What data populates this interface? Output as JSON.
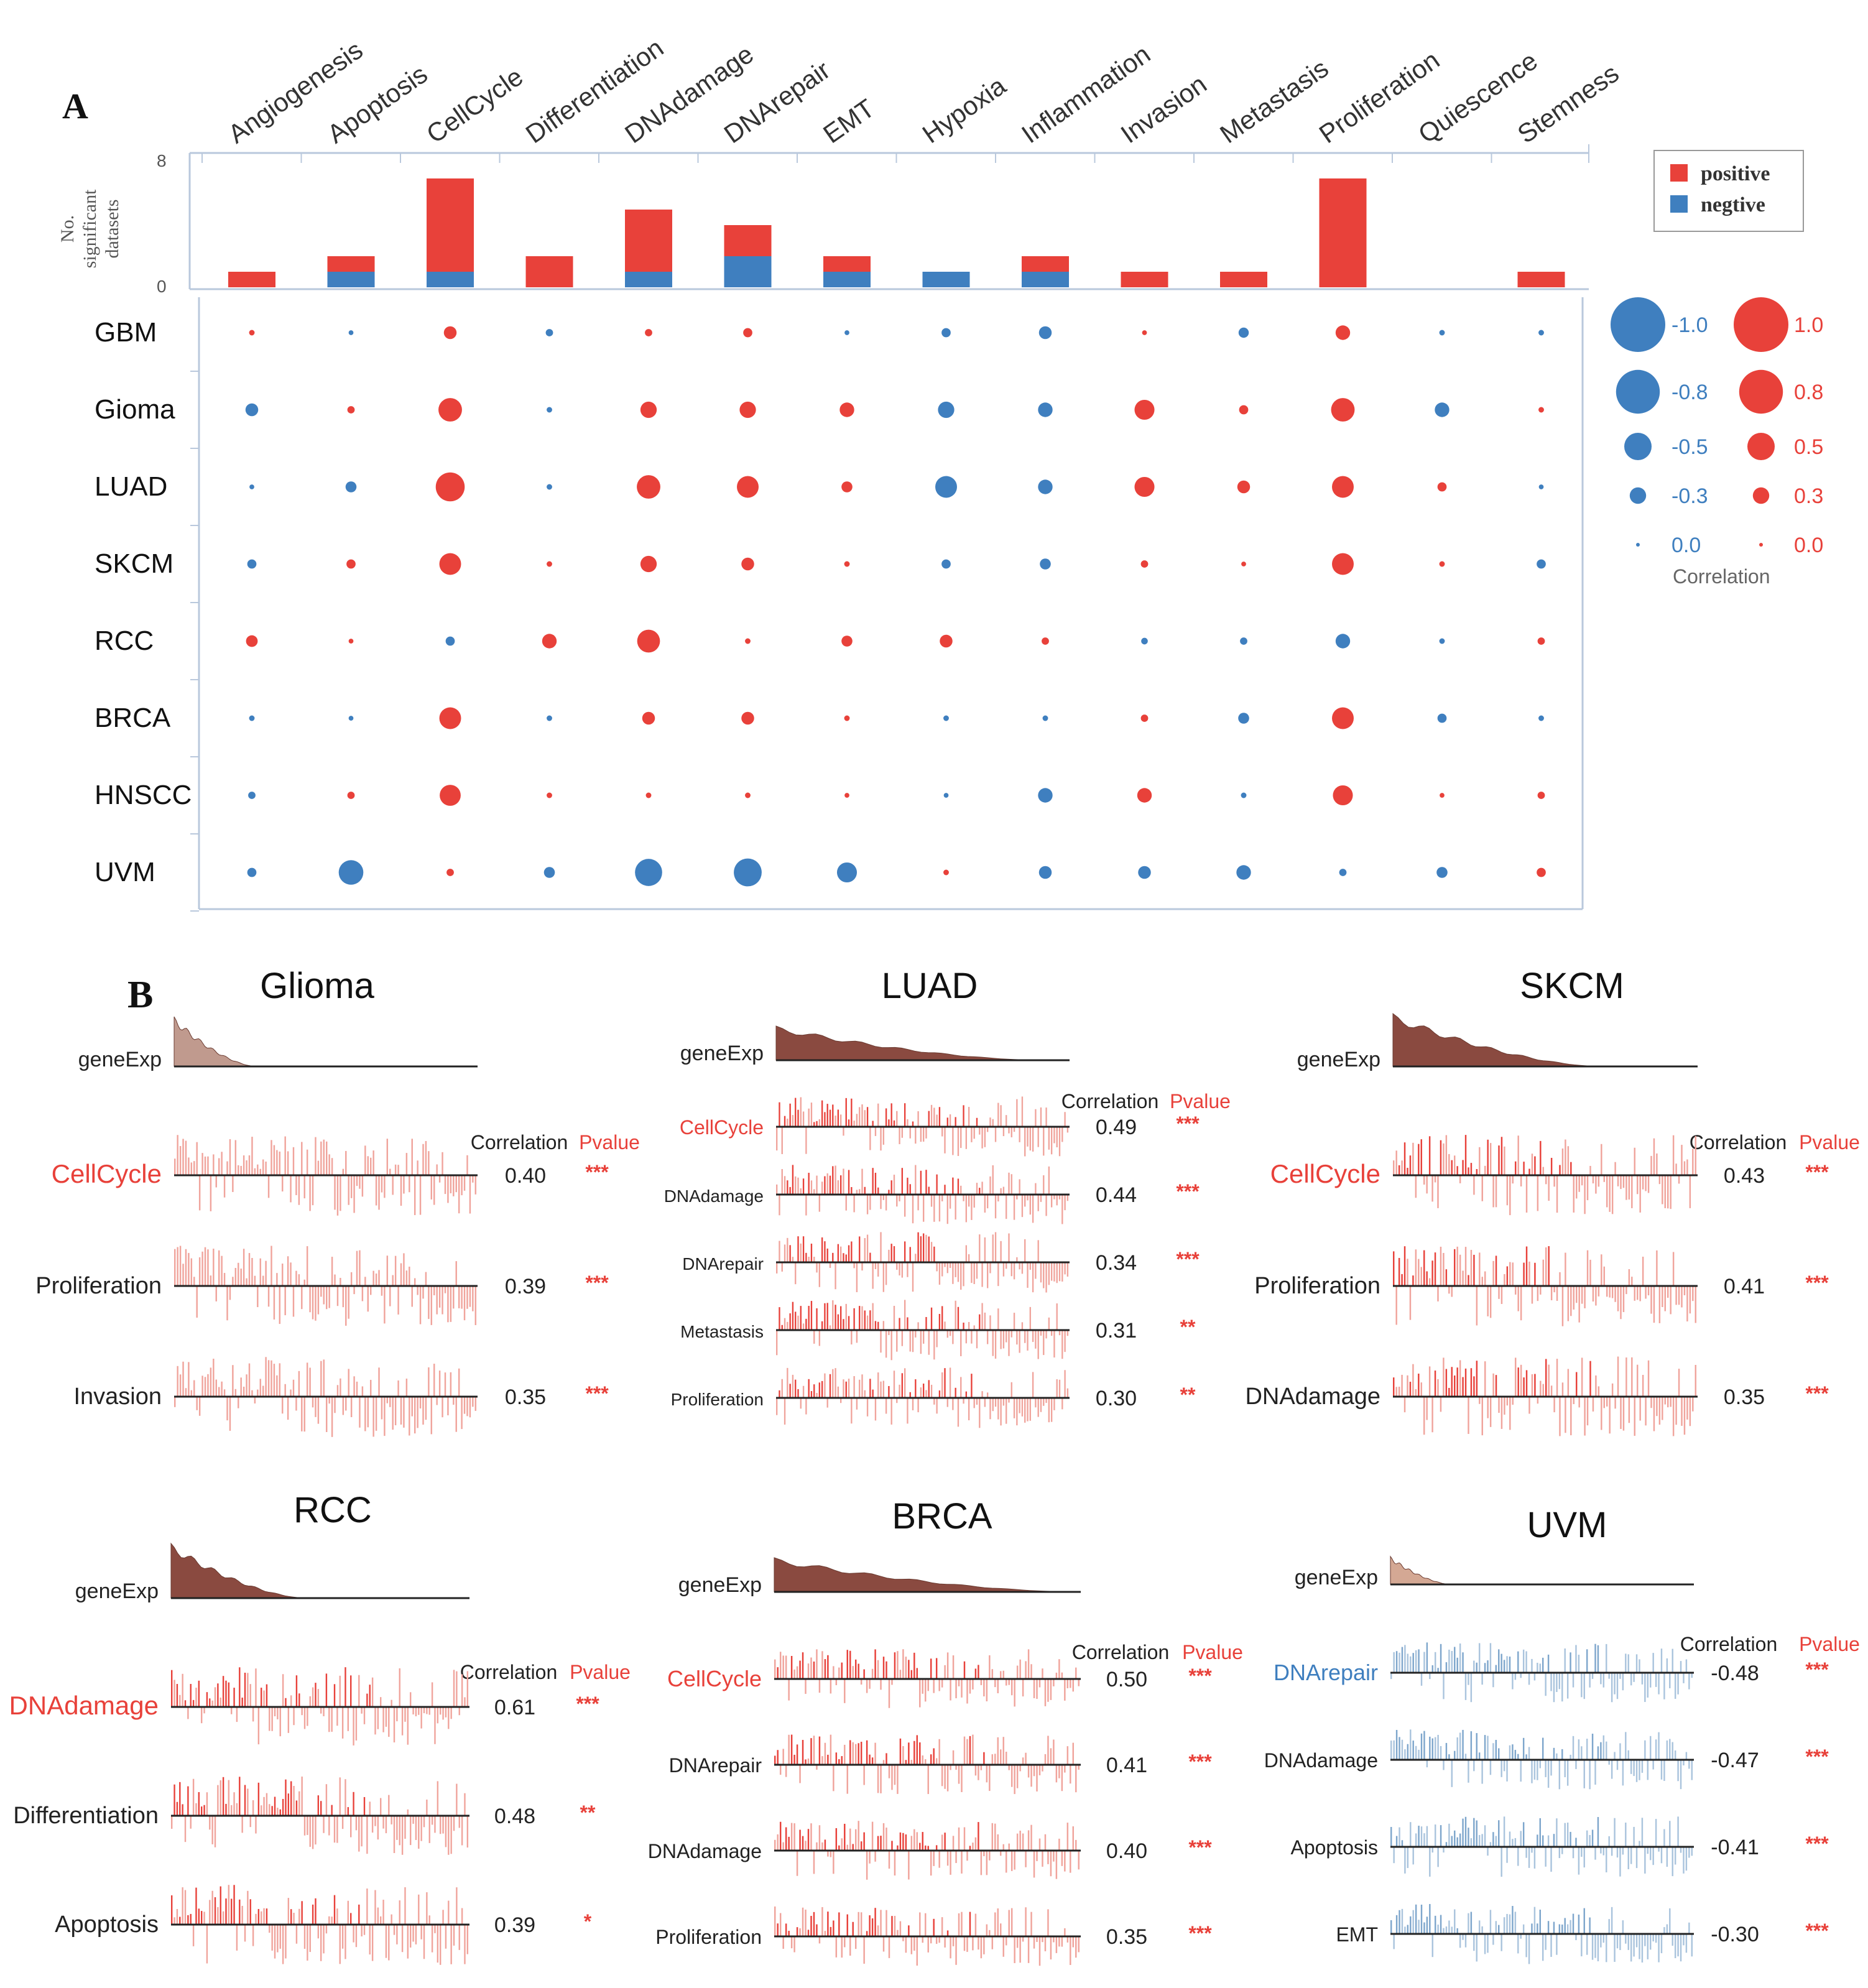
{
  "panel_a": {
    "label": "A",
    "categories": [
      "Angiogenesis",
      "Apoptosis",
      "CellCycle",
      "Differentiation",
      "DNAdamage",
      "DNArepair",
      "EMT",
      "Hypoxia",
      "Inflammation",
      "Invasion",
      "Metastasis",
      "Proliferation",
      "Quiescence",
      "Stemness"
    ],
    "cancers": [
      "GBM",
      "Gioma",
      "LUAD",
      "SKCM",
      "RCC",
      "BRCA",
      "HNSCC",
      "UVM"
    ],
    "bar_ylabel_lines": [
      "No.",
      "significant",
      "datasets"
    ],
    "bar_ymax_label": "8",
    "bar_ymin_label": "0",
    "bar_ylim": [
      0,
      8
    ],
    "bars_positive": [
      1,
      1,
      6,
      2,
      4,
      2,
      1,
      0,
      1,
      1,
      1,
      7,
      0,
      1
    ],
    "bars_negative": [
      0,
      1,
      1,
      0,
      1,
      2,
      1,
      1,
      1,
      0,
      0,
      0,
      0,
      0
    ],
    "bar_legend": {
      "positive": "positive",
      "negative": "negtive"
    },
    "colors": {
      "positive": "#e8413a",
      "negative": "#3f7fbf",
      "axis": "#b9c8dc"
    },
    "correlations": [
      [
        0.05,
        -0.03,
        0.25,
        -0.1,
        0.1,
        0.15,
        -0.03,
        -0.15,
        -0.25,
        0.03,
        -0.18,
        0.3,
        -0.05,
        -0.05
      ],
      [
        -0.25,
        0.1,
        0.55,
        -0.05,
        0.35,
        0.35,
        0.3,
        -0.35,
        -0.3,
        0.45,
        0.15,
        0.55,
        -0.3,
        0.05
      ],
      [
        -0.03,
        -0.2,
        0.7,
        -0.05,
        0.55,
        0.5,
        0.2,
        -0.5,
        -0.3,
        0.45,
        0.25,
        0.5,
        0.15,
        -0.03
      ],
      [
        -0.15,
        0.15,
        0.5,
        0.05,
        0.35,
        0.25,
        0.05,
        -0.15,
        -0.2,
        0.1,
        0.03,
        0.5,
        0.05,
        -0.15
      ],
      [
        0.22,
        0.03,
        -0.15,
        0.3,
        0.53,
        0.05,
        0.2,
        0.25,
        0.1,
        -0.08,
        -0.1,
        -0.3,
        -0.05,
        0.1
      ],
      [
        -0.05,
        -0.03,
        0.5,
        -0.05,
        0.25,
        0.25,
        0.05,
        -0.05,
        -0.05,
        0.1,
        -0.2,
        0.5,
        -0.15,
        -0.05
      ],
      [
        -0.1,
        0.1,
        0.48,
        0.05,
        0.05,
        0.05,
        0.03,
        -0.03,
        -0.3,
        0.3,
        -0.05,
        0.45,
        0.03,
        0.1
      ],
      [
        -0.15,
        -0.58,
        0.1,
        -0.2,
        -0.65,
        -0.67,
        -0.45,
        0.05,
        -0.25,
        -0.25,
        -0.3,
        -0.1,
        -0.2,
        0.15
      ]
    ],
    "size_legend": {
      "negative_values": [
        "-1.0",
        "-0.8",
        "-0.5",
        "-0.3",
        "0.0"
      ],
      "positive_values": [
        "1.0",
        "0.8",
        "0.5",
        "0.3",
        "0.0"
      ],
      "magnitudes": [
        1.0,
        0.8,
        0.5,
        0.3,
        0.02
      ],
      "title": "Correlation"
    }
  },
  "panel_b": {
    "label": "B",
    "geneexp_label": "geneExp",
    "corr_header": "Correlation",
    "pvalue_header": "Pvalue",
    "subplots": [
      {
        "title": "Glioma",
        "color": "#e8413a",
        "rows": [
          {
            "name": "CellCycle",
            "corr": "0.40",
            "p": "***",
            "highlight": true
          },
          {
            "name": "Proliferation",
            "corr": "0.39",
            "p": "***",
            "highlight": false
          },
          {
            "name": "Invasion",
            "corr": "0.35",
            "p": "***",
            "highlight": false
          }
        ]
      },
      {
        "title": "LUAD",
        "color": "#e8413a",
        "rows": [
          {
            "name": "CellCycle",
            "corr": "0.49",
            "p": "***",
            "highlight": true
          },
          {
            "name": "DNAdamage",
            "corr": "0.44",
            "p": "***",
            "highlight": false
          },
          {
            "name": "DNArepair",
            "corr": "0.34",
            "p": "***",
            "highlight": false
          },
          {
            "name": "Metastasis",
            "corr": "0.31",
            "p": "**",
            "highlight": false
          },
          {
            "name": "Proliferation",
            "corr": "0.30",
            "p": "**",
            "highlight": false
          }
        ]
      },
      {
        "title": "SKCM",
        "color": "#e8413a",
        "rows": [
          {
            "name": "CellCycle",
            "corr": "0.43",
            "p": "***",
            "highlight": true
          },
          {
            "name": "Proliferation",
            "corr": "0.41",
            "p": "***",
            "highlight": false
          },
          {
            "name": "DNAdamage",
            "corr": "0.35",
            "p": "***",
            "highlight": false
          }
        ]
      },
      {
        "title": "RCC",
        "color": "#e8413a",
        "rows": [
          {
            "name": "DNAdamage",
            "corr": "0.61",
            "p": "***",
            "highlight": true
          },
          {
            "name": "Differentiation",
            "corr": "0.48",
            "p": "**",
            "highlight": false
          },
          {
            "name": "Apoptosis",
            "corr": "0.39",
            "p": "*",
            "highlight": false
          }
        ]
      },
      {
        "title": "BRCA",
        "color": "#e8413a",
        "rows": [
          {
            "name": "CellCycle",
            "corr": "0.50",
            "p": "***",
            "highlight": true
          },
          {
            "name": "DNArepair",
            "corr": "0.41",
            "p": "***",
            "highlight": false
          },
          {
            "name": "DNAdamage",
            "corr": "0.40",
            "p": "***",
            "highlight": false
          },
          {
            "name": "Proliferation",
            "corr": "0.35",
            "p": "***",
            "highlight": false
          }
        ]
      },
      {
        "title": "UVM",
        "color": "#3f7fbf",
        "rows": [
          {
            "name": "DNArepair",
            "corr": "-0.48",
            "p": "***",
            "highlight": true
          },
          {
            "name": "DNAdamage",
            "corr": "-0.47",
            "p": "***",
            "highlight": false
          },
          {
            "name": "Apoptosis",
            "corr": "-0.41",
            "p": "***",
            "highlight": false
          },
          {
            "name": "EMT",
            "corr": "-0.30",
            "p": "***",
            "highlight": false
          }
        ]
      }
    ]
  },
  "chart_data": {
    "type": "bar",
    "title": "",
    "categories": [
      "Angiogenesis",
      "Apoptosis",
      "CellCycle",
      "Differentiation",
      "DNAdamage",
      "DNArepair",
      "EMT",
      "Hypoxia",
      "Inflammation",
      "Invasion",
      "Metastasis",
      "Proliferation",
      "Quiescence",
      "Stemness"
    ],
    "series": [
      {
        "name": "positive",
        "values": [
          1,
          1,
          6,
          2,
          4,
          2,
          1,
          0,
          1,
          1,
          1,
          7,
          0,
          1
        ]
      },
      {
        "name": "negtive",
        "values": [
          0,
          1,
          1,
          0,
          1,
          2,
          1,
          1,
          1,
          0,
          0,
          0,
          0,
          0
        ]
      }
    ],
    "ylabel": "No. significant datasets",
    "ylim": [
      0,
      8
    ],
    "stacked": true
  }
}
